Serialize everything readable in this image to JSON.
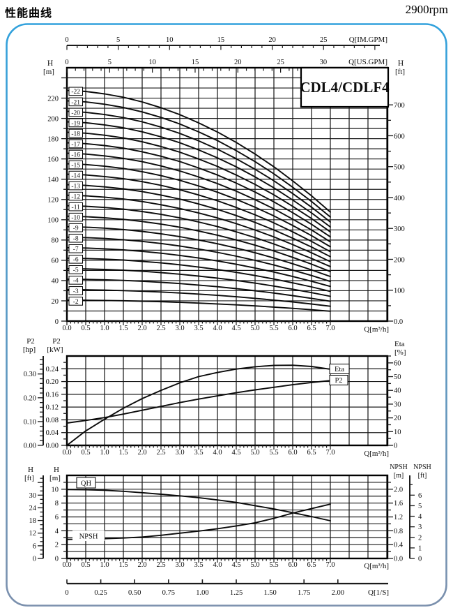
{
  "header": {
    "title": "性能曲线",
    "rpm": "2900rpm"
  },
  "model_label": "CDL4/CDLF4",
  "colors": {
    "frame_top": "#31a1dc",
    "frame_bottom": "#7b90ad",
    "ink": "#1b1b1b",
    "curve": "#0b0b0b"
  },
  "q_axis": {
    "unit_label": "Q[m³/h]",
    "tick_values": [
      0,
      0.5,
      1,
      1.5,
      2,
      2.5,
      3,
      3.5,
      4,
      4.5,
      5,
      5.5,
      6,
      6.5,
      7
    ],
    "tick_labels": [
      "0.0",
      "0.5",
      "1.0",
      "1.5",
      "2.0",
      "2.5",
      "3.0",
      "3.5",
      "4.0",
      "4.5",
      "5.0",
      "5.5",
      "6.0",
      "6.5",
      "7.0"
    ],
    "minor_step": 0.1
  },
  "chart_data": [
    {
      "type": "line",
      "name": "head-curves",
      "model_box": "CDL4/CDLF4",
      "y_axis_left": {
        "title": [
          "H",
          "[m]"
        ],
        "tick_values": [
          0,
          20,
          40,
          60,
          80,
          100,
          120,
          140,
          160,
          180,
          200,
          220
        ],
        "tick_labels": [
          "0",
          "20",
          "40",
          "60",
          "80",
          "100",
          "120",
          "140",
          "160",
          "180",
          "200",
          "220"
        ],
        "minor_step": 10,
        "ymax": 250
      },
      "y_axis_right": {
        "title": [
          "H",
          "[ft]"
        ],
        "tick_values": [
          0,
          100,
          200,
          300,
          400,
          500,
          600,
          700
        ],
        "tick_labels": [
          "0.0",
          "100",
          "200",
          "300",
          "400",
          "500",
          "600",
          "700"
        ],
        "minor_step": 50,
        "m_per_ft": 0.3048
      },
      "x_axis_im": {
        "label": "Q[IM.GPM]",
        "tick_values": [
          0,
          5,
          10,
          15,
          20,
          25
        ],
        "tick_labels": [
          "0",
          "5",
          "10",
          "15",
          "20",
          "25"
        ],
        "minor_step": 1,
        "m3h_per_unit": 0.27276
      },
      "x_axis_us": {
        "label": "Q[US.GPM]",
        "tick_values": [
          0,
          5,
          10,
          15,
          20,
          25,
          30
        ],
        "tick_labels": [
          "0",
          "5",
          "10",
          "15",
          "20",
          "25",
          "30"
        ],
        "minor_step": 1,
        "m3h_per_unit": 0.22712
      },
      "q_points": [
        0,
        0.5,
        1,
        1.5,
        2,
        2.5,
        3,
        3.5,
        4,
        4.5,
        5,
        5.5,
        6,
        6.5,
        7
      ],
      "per_stage_head_m": [
        10.35,
        10.3,
        10.19,
        10.04,
        9.83,
        9.57,
        9.26,
        8.89,
        8.48,
        8.01,
        7.49,
        6.92,
        6.29,
        5.62,
        4.89
      ],
      "stages": [
        2,
        3,
        4,
        5,
        6,
        7,
        8,
        9,
        10,
        11,
        12,
        13,
        14,
        15,
        16,
        17,
        18,
        19,
        20,
        21,
        22
      ],
      "stage_labels": [
        "-2",
        "-3",
        "-4",
        "-5",
        "-6",
        "-7",
        "-8",
        "-9",
        "-10",
        "-11",
        "-12",
        "-13",
        "-14",
        "-15",
        "-16",
        "-17",
        "-18",
        "-19",
        "-20",
        "-21",
        "-22"
      ]
    },
    {
      "type": "line",
      "name": "power-efficiency",
      "kw_axis": {
        "title": [
          "P2",
          "[kW]"
        ],
        "tick_values": [
          0,
          0.04,
          0.08,
          0.12,
          0.16,
          0.2,
          0.24
        ],
        "tick_labels": [
          "0.00",
          "0.04",
          "0.08",
          "0.12",
          "0.16",
          "0.20",
          "0.24"
        ],
        "minor_step": 0.02,
        "ymax": 0.28
      },
      "hp_axis": {
        "title": [
          "P2",
          "[hp]"
        ],
        "tick_values": [
          0,
          0.1,
          0.2,
          0.3
        ],
        "tick_labels": [
          "0.00",
          "0.10",
          "0.20",
          "0.30"
        ],
        "minor_step": 0.02,
        "kw_per_hp": 0.7457
      },
      "eta_axis": {
        "title": [
          "Eta",
          "[%]"
        ],
        "tick_values": [
          0,
          10,
          20,
          30,
          40,
          50,
          60
        ],
        "tick_labels": [
          "0",
          "10",
          "20",
          "30",
          "40",
          "50",
          "60"
        ],
        "minor_step": 5,
        "ymax": 65
      },
      "q_points": [
        0,
        0.5,
        1,
        1.5,
        2,
        2.5,
        3,
        3.5,
        4,
        4.5,
        5,
        5.5,
        6,
        6.5,
        7
      ],
      "series": [
        {
          "name": "Eta",
          "axis": "eta",
          "values": [
            0,
            10.5,
            19,
            27,
            34,
            40,
            45.5,
            50,
            53,
            55.5,
            57.2,
            58.2,
            58.3,
            57.4,
            55.4
          ]
        },
        {
          "name": "P2",
          "axis": "kw",
          "values": [
            0.07,
            0.078,
            0.087,
            0.098,
            0.11,
            0.122,
            0.134,
            0.145,
            0.155,
            0.165,
            0.174,
            0.182,
            0.19,
            0.197,
            0.203
          ]
        }
      ]
    },
    {
      "type": "line",
      "name": "qh-npsh",
      "m_axis": {
        "title": [
          "H",
          "[m]"
        ],
        "tick_values": [
          0,
          2,
          4,
          6,
          8,
          10
        ],
        "tick_labels": [
          "0",
          "2",
          "4",
          "6",
          "8",
          "10"
        ],
        "minor_step": 1,
        "ymax": 12
      },
      "ft_axis": {
        "title": [
          "H",
          "[ft]"
        ],
        "tick_values": [
          0,
          6,
          12,
          18,
          24,
          30
        ],
        "tick_labels": [
          "0",
          "6",
          "12",
          "18",
          "24",
          "30"
        ],
        "minor_step": 2,
        "m_per_ft": 0.3048
      },
      "npsh_m_axis": {
        "title": [
          "NPSH",
          "[m]"
        ],
        "tick_values": [
          0,
          0.4,
          0.8,
          1.2,
          1.6,
          2.0
        ],
        "tick_labels": [
          "0.0",
          "0.4",
          "0.8",
          "1.2",
          "1.6",
          "2.0"
        ],
        "minor_step": 0.2,
        "h_per_npsh": 5
      },
      "npsh_ft_axis": {
        "title": [
          "NPSH",
          "[ft]"
        ],
        "tick_values": [
          0,
          1,
          2,
          3,
          4,
          5,
          6
        ],
        "tick_labels": [
          "0",
          "1",
          "2",
          "3",
          "4",
          "5",
          "6"
        ],
        "m_per_ft": 0.3048
      },
      "x_axis_ls": {
        "label": "Q[1/S]",
        "tick_values": [
          0,
          0.25,
          0.5,
          0.75,
          1.0,
          1.25,
          1.5,
          1.75,
          2.0
        ],
        "tick_labels": [
          "0",
          "0.25",
          "0.50",
          "0.75",
          "1.00",
          "1.25",
          "1.50",
          "1.75",
          "2.00"
        ],
        "m3h_per_unit": 3.6
      },
      "q_points": [
        0,
        0.5,
        1,
        1.5,
        2,
        2.5,
        3,
        3.5,
        4,
        4.5,
        5,
        5.5,
        6,
        6.5,
        7
      ],
      "series": [
        {
          "name": "QH",
          "axis": "m",
          "values": [
            9.95,
            9.93,
            9.85,
            9.7,
            9.5,
            9.28,
            9.05,
            8.78,
            8.45,
            8.1,
            7.62,
            7.15,
            6.62,
            6.05,
            5.45
          ]
        },
        {
          "name": "NPSH",
          "axis": "npsh",
          "values": [
            0.55,
            0.556,
            0.57,
            0.59,
            0.62,
            0.67,
            0.73,
            0.79,
            0.86,
            0.94,
            1.03,
            1.16,
            1.31,
            1.44,
            1.57
          ]
        }
      ]
    }
  ]
}
